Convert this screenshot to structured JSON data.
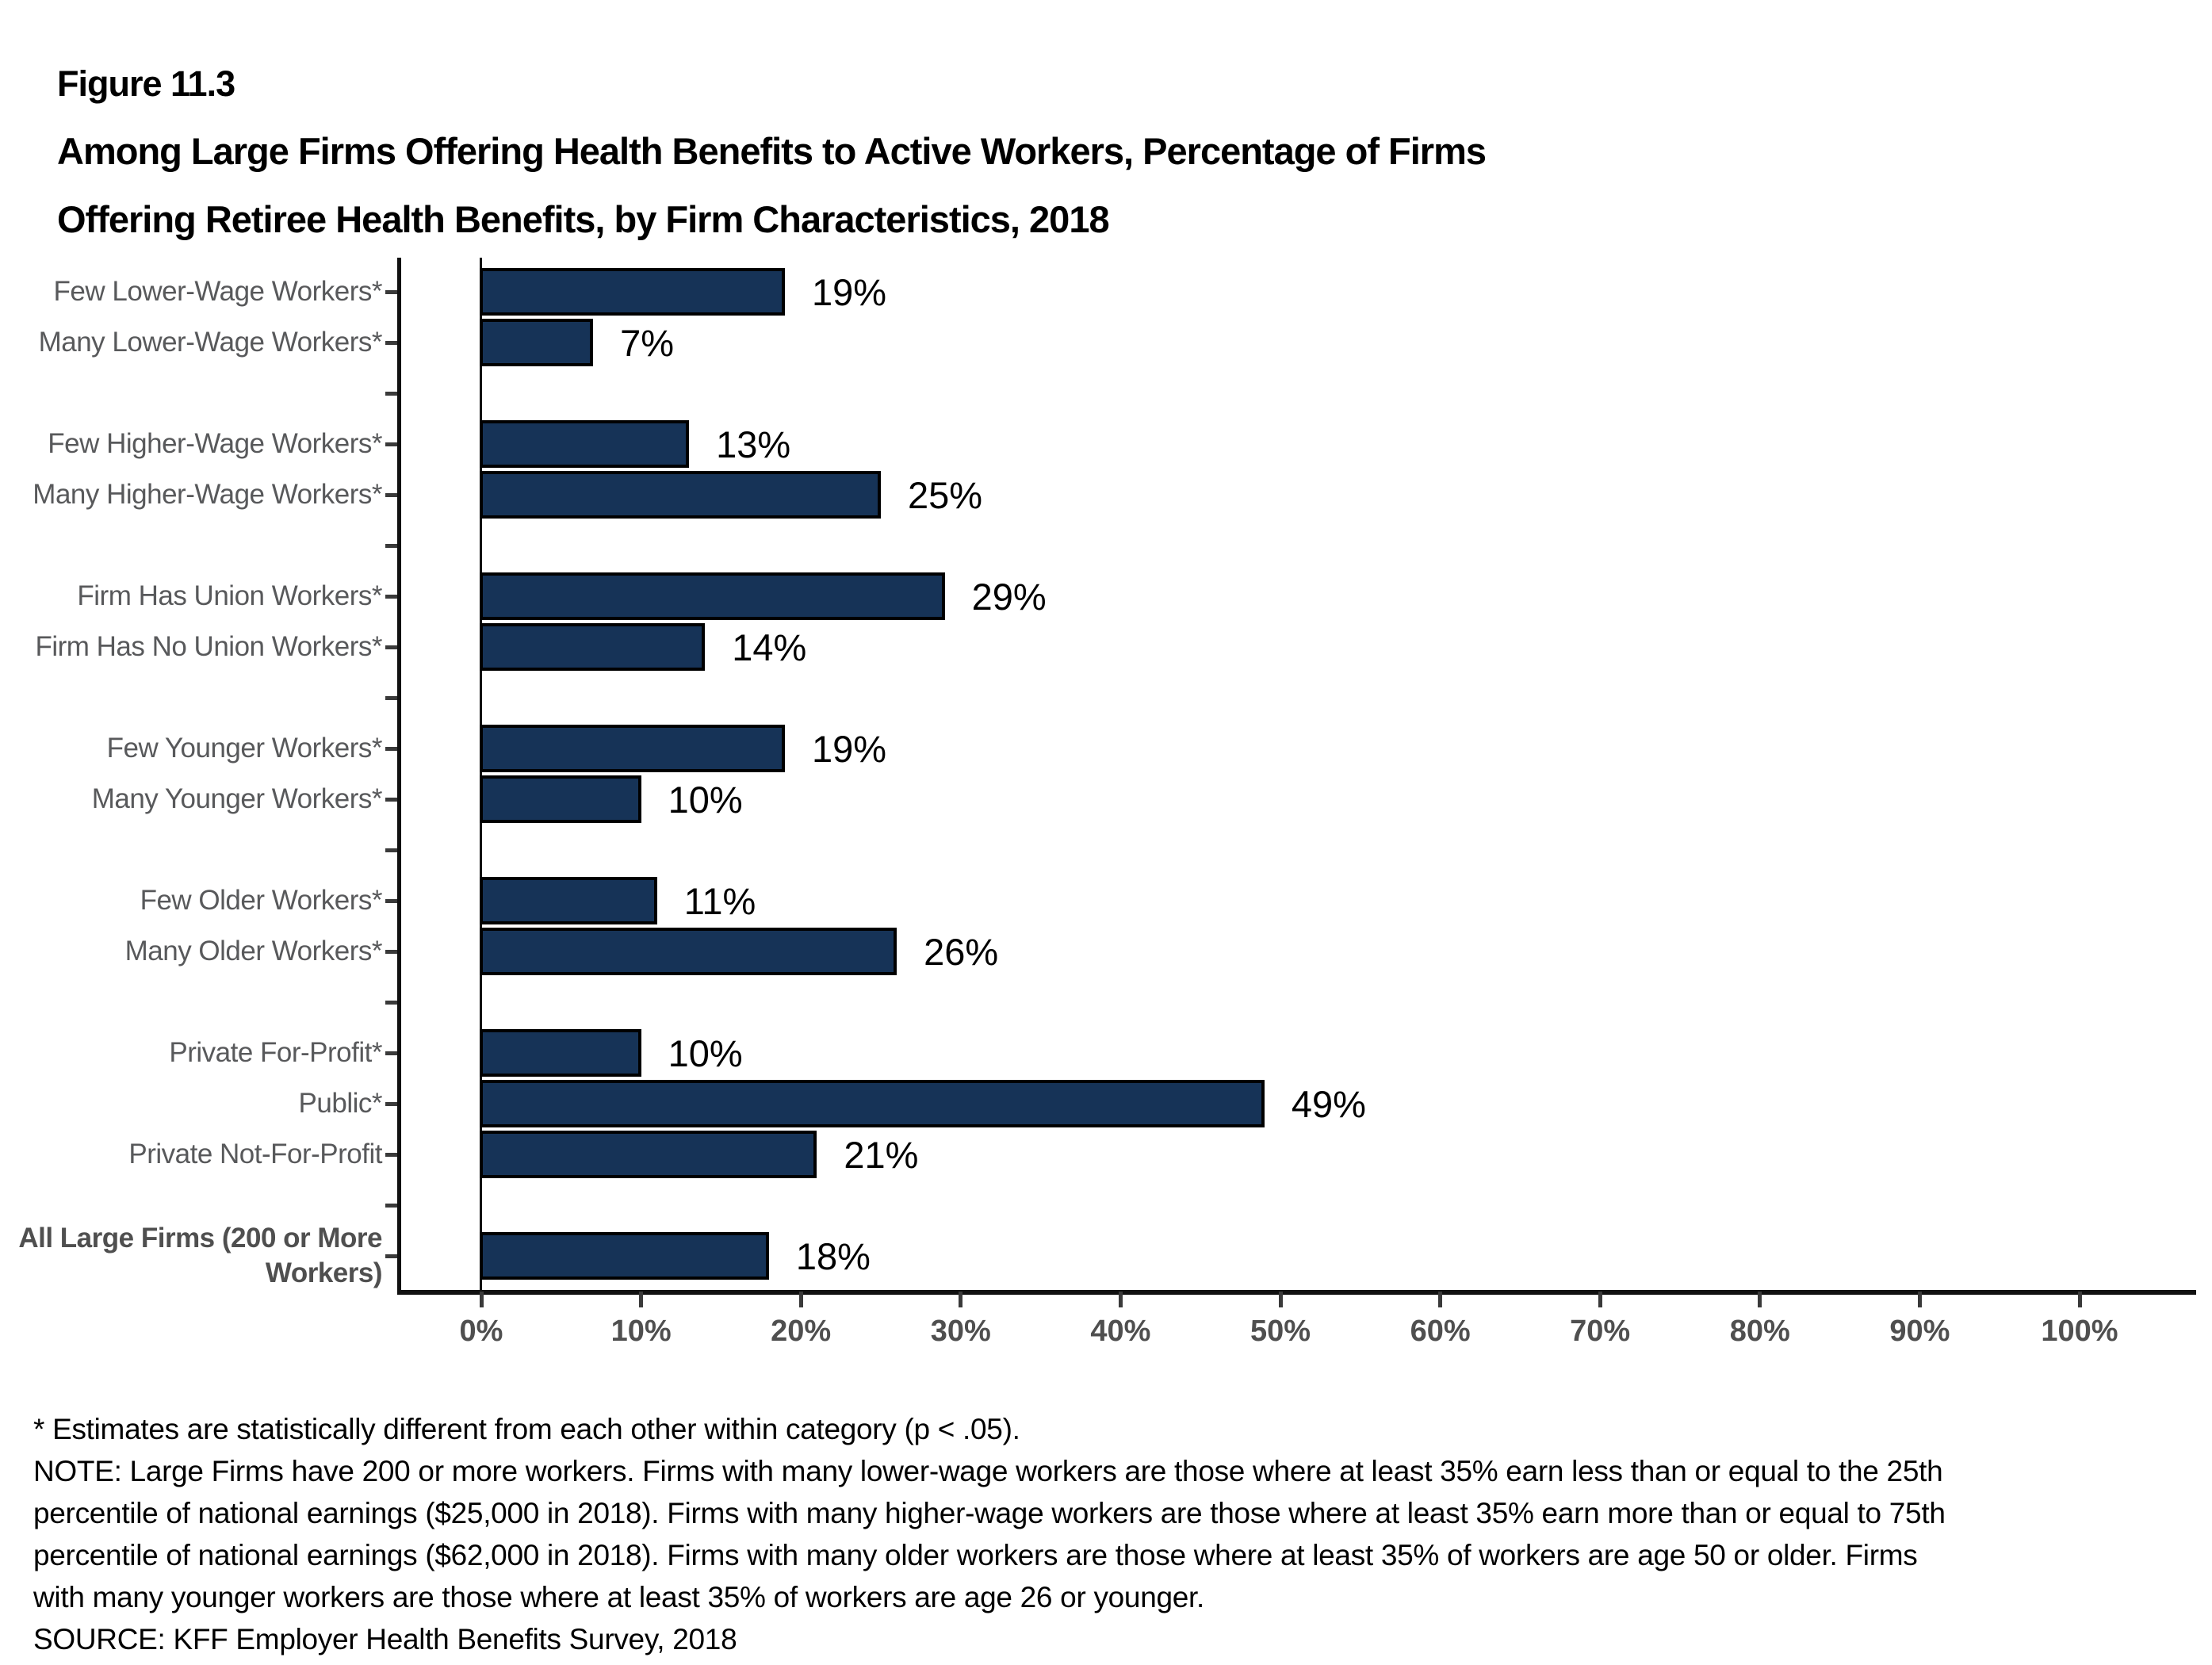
{
  "header": {
    "figure_label": "Figure 11.3",
    "title_line1": "Among Large Firms Offering Health Benefits to Active Workers, Percentage of Firms",
    "title_line2": "Offering Retiree Health Benefits, by Firm Characteristics, 2018"
  },
  "chart_data": {
    "type": "bar",
    "orientation": "horizontal",
    "title": "Among Large Firms Offering Health Benefits to Active Workers, Percentage of Firms Offering Retiree Health Benefits, by Firm Characteristics, 2018",
    "categories": [
      "Few Lower-Wage Workers*",
      "Many Lower-Wage Workers*",
      "Few Higher-Wage Workers*",
      "Many Higher-Wage Workers*",
      "Firm Has Union Workers*",
      "Firm Has No Union Workers*",
      "Few Younger Workers*",
      "Many Younger Workers*",
      "Few Older Workers*",
      "Many Older Workers*",
      "Private For-Profit*",
      "Public*",
      "Private Not-For-Profit",
      "All Large Firms (200 or More Workers)"
    ],
    "values": [
      19,
      7,
      13,
      25,
      29,
      14,
      19,
      10,
      11,
      26,
      10,
      49,
      21,
      18
    ],
    "value_labels": [
      "19%",
      "7%",
      "13%",
      "25%",
      "29%",
      "14%",
      "19%",
      "10%",
      "11%",
      "26%",
      "10%",
      "49%",
      "21%",
      "18%"
    ],
    "x_ticks": [
      "0%",
      "10%",
      "20%",
      "30%",
      "40%",
      "50%",
      "60%",
      "70%",
      "80%",
      "90%",
      "100%"
    ],
    "xlim": [
      0,
      100
    ],
    "gaps_after_category_index": [
      1,
      3,
      5,
      7,
      9,
      12
    ],
    "bold_category_index": 13,
    "grid": false,
    "legend": "none",
    "colors": {
      "bar_fill": "#163357",
      "bar_border": "#000000",
      "category_label": "#58595B",
      "bold_category_label": "#4F4F4F",
      "axis_line": "#111111",
      "tick": "#3A3A3A",
      "x_tick_label": "#4F4F4F",
      "value_label": "#000000"
    }
  },
  "footnotes": {
    "lines": [
      "* Estimates are statistically different from each other within category (p < .05).",
      "NOTE: Large Firms have 200 or more workers. Firms with many lower-wage workers are those where at least 35% earn less than or equal to the 25th",
      "percentile of national earnings ($25,000 in 2018). Firms with many higher-wage workers are those where at least 35% earn more than or equal to 75th",
      "percentile of national earnings ($62,000 in 2018). Firms with many older workers are those where at least 35% of workers are age 50 or older. Firms",
      "with many younger workers are those where at least 35% of workers are age 26 or younger.",
      "SOURCE: KFF Employer Health Benefits Survey, 2018"
    ]
  }
}
